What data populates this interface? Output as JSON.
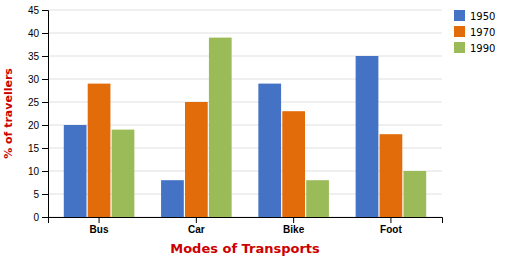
{
  "chart_data": {
    "type": "bar",
    "xlabel": "Modes of Transports",
    "ylabel": "% of travellers",
    "categories": [
      "Bus",
      "Car",
      "Bike",
      "Foot"
    ],
    "series": [
      {
        "name": "1950",
        "color": "#4472C4",
        "values": [
          20,
          8,
          29,
          35
        ]
      },
      {
        "name": "1970",
        "color": "#E26B0A",
        "values": [
          29,
          25,
          23,
          18
        ]
      },
      {
        "name": "1990",
        "color": "#9BBB59",
        "values": [
          19,
          39,
          8,
          10
        ]
      }
    ],
    "ylim": [
      0,
      45
    ],
    "yticks": [
      0,
      5,
      10,
      15,
      20,
      25,
      30,
      35,
      40,
      45
    ],
    "grid": true,
    "legend": "upper right"
  }
}
